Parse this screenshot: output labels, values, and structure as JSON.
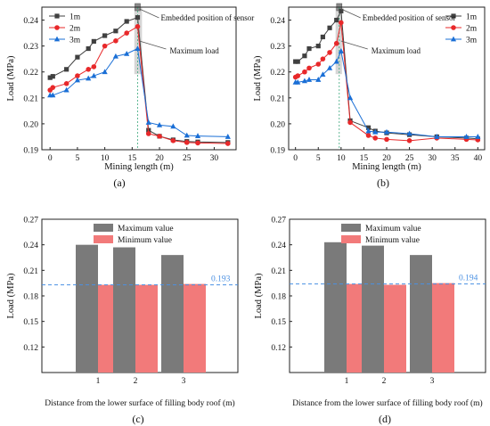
{
  "figure": {
    "colors": {
      "s1m": "#404040",
      "s2m": "#e8282a",
      "s3m": "#1a6fd6",
      "max_bar": "#7a7a7a",
      "min_bar": "#f27a7a",
      "ref_line": "#4a90e2",
      "shade": "#c8c8c8"
    }
  },
  "chart_data": [
    {
      "id": "a",
      "type": "line",
      "panel_label": "(a)",
      "xlabel": "Mining length (m)",
      "ylabel": "Load (MPa)",
      "xlim": [
        -1.5,
        34
      ],
      "ylim": [
        0.19,
        0.245
      ],
      "xticks": [
        0,
        5,
        10,
        15,
        20,
        25,
        30
      ],
      "yticks": [
        0.19,
        0.2,
        0.21,
        0.22,
        0.23,
        0.24
      ],
      "ytick_labels": [
        "0.19",
        "0.20",
        "0.21",
        "0.22",
        "0.23",
        "0.24"
      ],
      "legend": "top-left",
      "shade_x": [
        15.4,
        16.8
      ],
      "dashed_x": 16.0,
      "annotations": {
        "sensor": "Embedded position of sensor",
        "max": "Maximum load"
      },
      "series": [
        {
          "name": "1m",
          "marker": "square",
          "color_key": "s1m",
          "x": [
            0,
            0.5,
            3,
            5,
            7,
            8,
            10,
            12,
            14,
            16,
            18,
            20,
            22.5,
            25,
            27,
            32.5
          ],
          "y": [
            0.2178,
            0.2183,
            0.221,
            0.2257,
            0.229,
            0.2318,
            0.234,
            0.2358,
            0.2395,
            0.241,
            0.1975,
            0.1952,
            0.1938,
            0.1932,
            0.193,
            0.1928
          ]
        },
        {
          "name": "2m",
          "marker": "circle",
          "color_key": "s2m",
          "x": [
            0,
            0.5,
            3,
            5,
            7,
            8,
            10,
            12,
            14,
            16,
            18,
            20,
            22.5,
            25,
            27,
            32.5
          ],
          "y": [
            0.213,
            0.214,
            0.2155,
            0.2185,
            0.221,
            0.222,
            0.23,
            0.232,
            0.235,
            0.2375,
            0.1962,
            0.1952,
            0.1935,
            0.1928,
            0.1926,
            0.1924
          ]
        },
        {
          "name": "3m",
          "marker": "triangle",
          "color_key": "s3m",
          "x": [
            0,
            0.5,
            3,
            5,
            7,
            8,
            10,
            12,
            14,
            16,
            18,
            20,
            22.5,
            25,
            27,
            32.5
          ],
          "y": [
            0.211,
            0.211,
            0.213,
            0.2168,
            0.2175,
            0.2185,
            0.22,
            0.226,
            0.227,
            0.229,
            0.2005,
            0.1995,
            0.199,
            0.1955,
            0.1953,
            0.195
          ]
        }
      ]
    },
    {
      "id": "b",
      "type": "line",
      "panel_label": "(b)",
      "xlabel": "Mining length (m)",
      "ylabel": "Load (MPa)",
      "xlim": [
        -1.5,
        41.5
      ],
      "ylim": [
        0.19,
        0.245
      ],
      "xticks": [
        0,
        5,
        10,
        15,
        20,
        25,
        30,
        35,
        40
      ],
      "yticks": [
        0.19,
        0.2,
        0.21,
        0.22,
        0.23,
        0.24
      ],
      "ytick_labels": [
        "0.19",
        "0.20",
        "0.21",
        "0.22",
        "0.23",
        "0.24"
      ],
      "legend": "top-right",
      "shade_x": [
        8.8,
        10.2
      ],
      "dashed_x": 9.6,
      "annotations": {
        "sensor": "Embedded position of sensor",
        "max": "Maximum load"
      },
      "series": [
        {
          "name": "1m",
          "marker": "square",
          "color_key": "s1m",
          "x": [
            0,
            0.5,
            2,
            3,
            5,
            6,
            7.5,
            9,
            10,
            12,
            16,
            17.5,
            20,
            25,
            31,
            37.5,
            40
          ],
          "y": [
            0.224,
            0.224,
            0.2262,
            0.229,
            0.23,
            0.2335,
            0.237,
            0.24,
            0.2435,
            0.2012,
            0.1985,
            0.1972,
            0.1965,
            0.1958,
            0.195,
            0.1945,
            0.1942
          ]
        },
        {
          "name": "2m",
          "marker": "circle",
          "color_key": "s2m",
          "x": [
            0,
            0.5,
            2,
            3,
            5,
            6,
            7.5,
            9,
            10,
            12,
            16,
            17.5,
            20,
            25,
            31,
            37.5,
            40
          ],
          "y": [
            0.218,
            0.2185,
            0.22,
            0.2215,
            0.223,
            0.225,
            0.2275,
            0.231,
            0.239,
            0.2005,
            0.1955,
            0.1945,
            0.194,
            0.1935,
            0.1945,
            0.194,
            0.1938
          ]
        },
        {
          "name": "3m",
          "marker": "triangle",
          "color_key": "s3m",
          "x": [
            0,
            0.5,
            2,
            3,
            5,
            6,
            7.5,
            9,
            10,
            12,
            16,
            17.5,
            20,
            25,
            31,
            37.5,
            40
          ],
          "y": [
            0.216,
            0.216,
            0.2165,
            0.217,
            0.217,
            0.219,
            0.2215,
            0.224,
            0.228,
            0.21,
            0.1972,
            0.1968,
            0.1968,
            0.1962,
            0.195,
            0.195,
            0.195
          ]
        }
      ]
    },
    {
      "id": "c",
      "type": "bar",
      "panel_label": "(c)",
      "xlabel": "Distance from the lower surface of filling body roof (m)",
      "ylabel": "Load (MPa)",
      "categories": [
        "1",
        "2",
        "3"
      ],
      "ylim": [
        0.09,
        0.27
      ],
      "yticks": [
        0.12,
        0.15,
        0.18,
        0.21,
        0.24,
        0.27
      ],
      "ytick_labels": [
        "0.12",
        "0.15",
        "0.18",
        "0.21",
        "0.24",
        "0.27"
      ],
      "legend": "top-center",
      "reference_line": 0.193,
      "reference_label": "0.193",
      "series": [
        {
          "name": "Maximum value",
          "color_key": "max_bar",
          "values": [
            0.24,
            0.237,
            0.228
          ]
        },
        {
          "name": "Minimum value",
          "color_key": "min_bar",
          "values": [
            0.193,
            0.193,
            0.194
          ]
        }
      ]
    },
    {
      "id": "d",
      "type": "bar",
      "panel_label": "(d)",
      "xlabel": "Distance from the lower surface of filling body roof (m)",
      "ylabel": "Load (MPa)",
      "categories": [
        "1",
        "2",
        "3"
      ],
      "ylim": [
        0.09,
        0.27
      ],
      "yticks": [
        0.12,
        0.15,
        0.18,
        0.21,
        0.24,
        0.27
      ],
      "ytick_labels": [
        "0.12",
        "0.15",
        "0.18",
        "0.21",
        "0.24",
        "0.27"
      ],
      "legend": "top-center",
      "reference_line": 0.194,
      "reference_label": "0.194",
      "series": [
        {
          "name": "Maximum value",
          "color_key": "max_bar",
          "values": [
            0.243,
            0.239,
            0.228
          ]
        },
        {
          "name": "Minimum value",
          "color_key": "min_bar",
          "values": [
            0.194,
            0.193,
            0.195
          ]
        }
      ]
    }
  ]
}
